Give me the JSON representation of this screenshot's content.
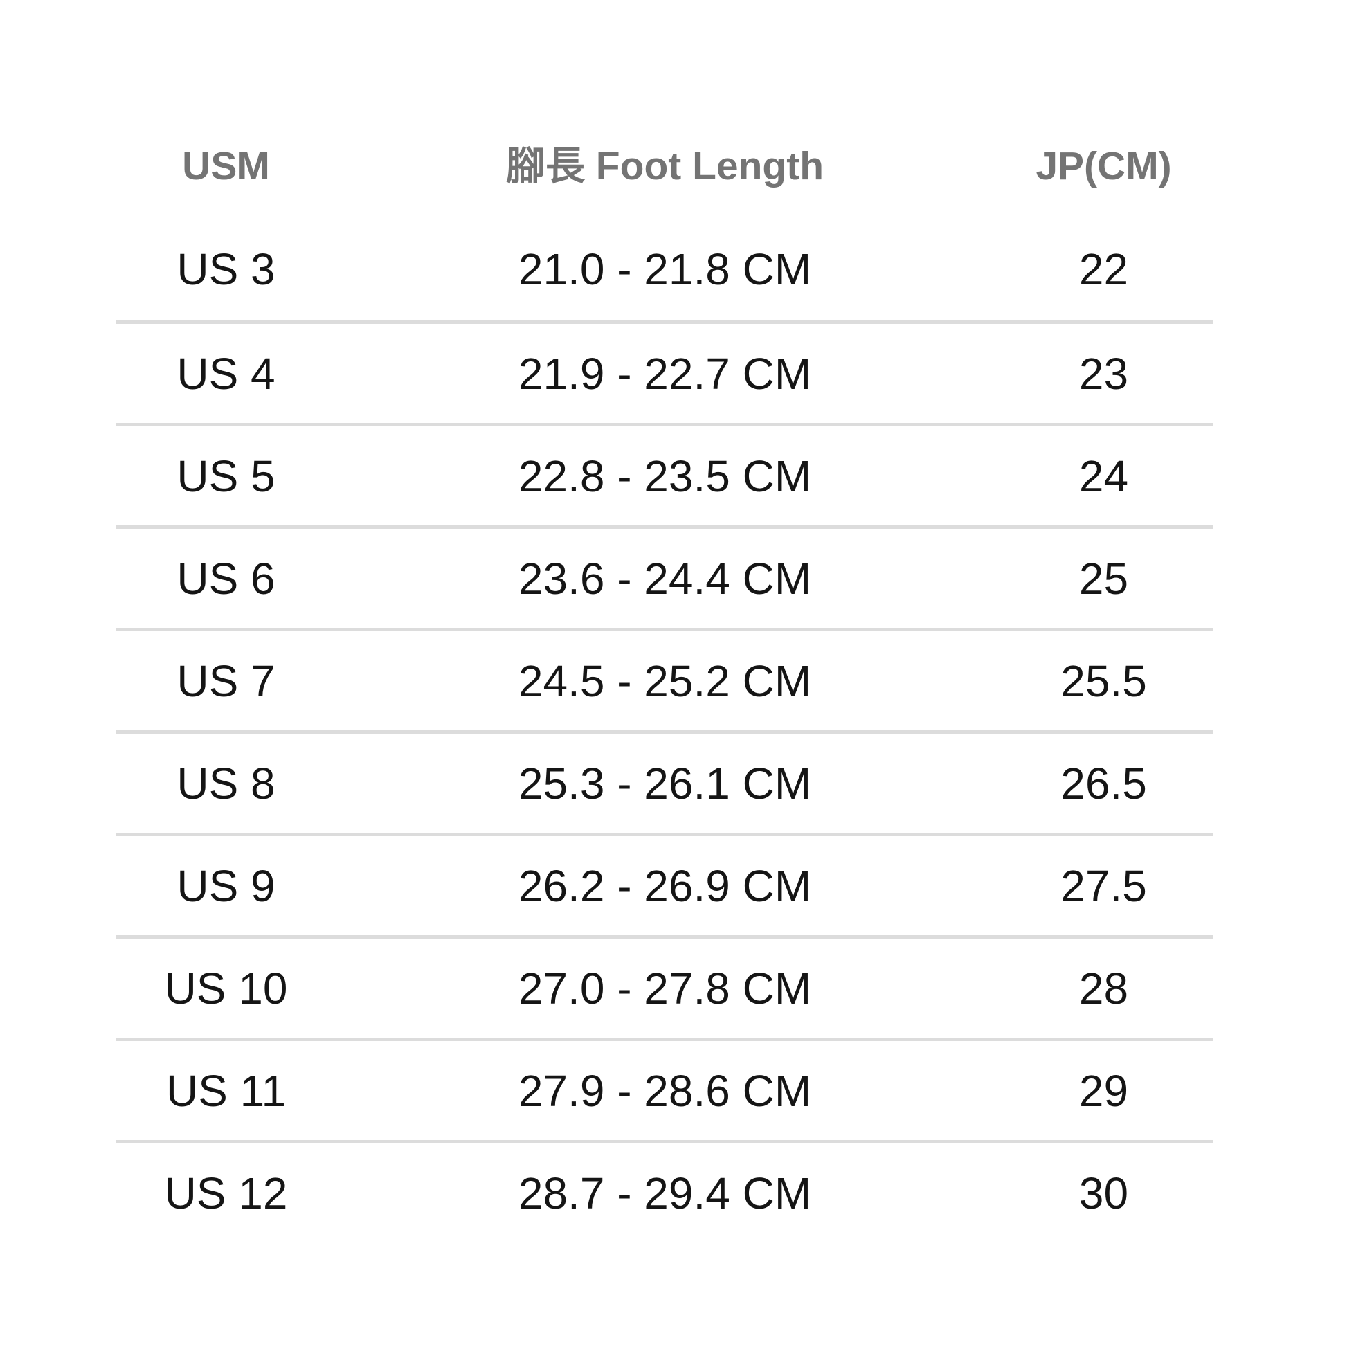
{
  "table": {
    "columns": [
      {
        "key": "usm",
        "label": "USM"
      },
      {
        "key": "foot_length",
        "label": "腳長 Foot Length"
      },
      {
        "key": "jp_cm",
        "label": "JP(CM)"
      }
    ],
    "rows": [
      {
        "usm": "US 3",
        "foot_length": "21.0 - 21.8 CM",
        "jp_cm": "22"
      },
      {
        "usm": "US 4",
        "foot_length": "21.9 - 22.7 CM",
        "jp_cm": "23"
      },
      {
        "usm": "US 5",
        "foot_length": "22.8 - 23.5 CM",
        "jp_cm": "24"
      },
      {
        "usm": "US 6",
        "foot_length": "23.6 - 24.4 CM",
        "jp_cm": "25"
      },
      {
        "usm": "US 7",
        "foot_length": "24.5 - 25.2 CM",
        "jp_cm": "25.5"
      },
      {
        "usm": "US 8",
        "foot_length": "25.3 - 26.1 CM",
        "jp_cm": "26.5"
      },
      {
        "usm": "US 9",
        "foot_length": "26.2 - 26.9 CM",
        "jp_cm": "27.5"
      },
      {
        "usm": "US 10",
        "foot_length": "27.0 - 27.8 CM",
        "jp_cm": "28"
      },
      {
        "usm": "US 11",
        "foot_length": "27.9 - 28.6 CM",
        "jp_cm": "29"
      },
      {
        "usm": "US 12",
        "foot_length": "28.7 - 29.4 CM",
        "jp_cm": "30"
      }
    ]
  },
  "colors": {
    "background": "#ffffff",
    "header_text": "#747474",
    "body_text": "#151515",
    "divider": "#dcdcdc"
  },
  "chart_data": {
    "type": "table",
    "title": "",
    "columns": [
      "USM",
      "腳長 Foot Length",
      "JP(CM)"
    ],
    "rows": [
      [
        "US 3",
        "21.0 - 21.8 CM",
        "22"
      ],
      [
        "US 4",
        "21.9 - 22.7 CM",
        "23"
      ],
      [
        "US 5",
        "22.8 - 23.5 CM",
        "24"
      ],
      [
        "US 6",
        "23.6 - 24.4 CM",
        "25"
      ],
      [
        "US 7",
        "24.5 - 25.2 CM",
        "25.5"
      ],
      [
        "US 8",
        "25.3 - 26.1 CM",
        "26.5"
      ],
      [
        "US 9",
        "26.2 - 26.9 CM",
        "27.5"
      ],
      [
        "US 10",
        "27.0 - 27.8 CM",
        "28"
      ],
      [
        "US 11",
        "27.9 - 28.6 CM",
        "29"
      ],
      [
        "US 12",
        "28.7 - 29.4 CM",
        "30"
      ]
    ],
    "layout": {
      "grid": "horizontal-dividers-between-data-rows",
      "column_alignment": [
        "center",
        "center",
        "center"
      ],
      "header_style": "bold-gray"
    }
  }
}
